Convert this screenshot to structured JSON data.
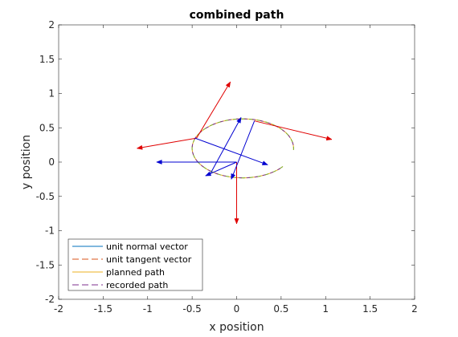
{
  "chart_data": {
    "type": "line",
    "title": "combined path",
    "xlabel": "x position",
    "ylabel": "y position",
    "xlim": [
      -2,
      2
    ],
    "ylim": [
      -2,
      2
    ],
    "xticks": [
      "-2",
      "-1.5",
      "-1",
      "-0.5",
      "0",
      "0.5",
      "1",
      "1.5",
      "2"
    ],
    "yticks": [
      "-2",
      "-1.5",
      "-1",
      "-0.5",
      "0",
      "0.5",
      "1",
      "1.5",
      "2"
    ],
    "grid": false,
    "legend_position": "bottom-left",
    "legend": [
      {
        "label": "unit normal vector",
        "color": "#0072BD",
        "style": "solid"
      },
      {
        "label": "unit tangent vector",
        "color": "#D95319",
        "style": "dashed"
      },
      {
        "label": "planned path",
        "color": "#EDB120",
        "style": "solid"
      },
      {
        "label": "recorded path",
        "color": "#7E2F8E",
        "style": "dashed"
      }
    ],
    "path": {
      "center": [
        0.07,
        0.2
      ],
      "rx": 0.57,
      "ry": 0.43,
      "start_deg": -3,
      "sweep_deg": 325,
      "colors": [
        "#EDB120",
        "#77AC30",
        "#7E2F8E"
      ]
    },
    "tangent_vectors": {
      "color": "#E00000",
      "segments": [
        {
          "from": [
            -0.45,
            0.35
          ],
          "to": [
            -0.07,
            1.17
          ]
        },
        {
          "from": [
            0.2,
            0.6
          ],
          "to": [
            1.07,
            0.33
          ]
        },
        {
          "from": [
            0.0,
            0.0
          ],
          "to": [
            0.0,
            -0.9
          ]
        },
        {
          "from": [
            -0.45,
            0.35
          ],
          "to": [
            -1.12,
            0.2
          ]
        }
      ]
    },
    "normal_vectors": {
      "color": "#0000D0",
      "segments": [
        {
          "from": [
            -0.3,
            -0.18
          ],
          "to": [
            0.05,
            0.65
          ]
        },
        {
          "from": [
            0.0,
            0.0
          ],
          "to": [
            -0.9,
            0.0
          ]
        },
        {
          "from": [
            -0.47,
            0.35
          ],
          "to": [
            0.35,
            -0.04
          ]
        },
        {
          "from": [
            0.0,
            0.0
          ],
          "to": [
            -0.35,
            -0.2
          ]
        },
        {
          "from": [
            0.2,
            0.6
          ],
          "to": [
            -0.06,
            -0.25
          ]
        }
      ]
    }
  }
}
